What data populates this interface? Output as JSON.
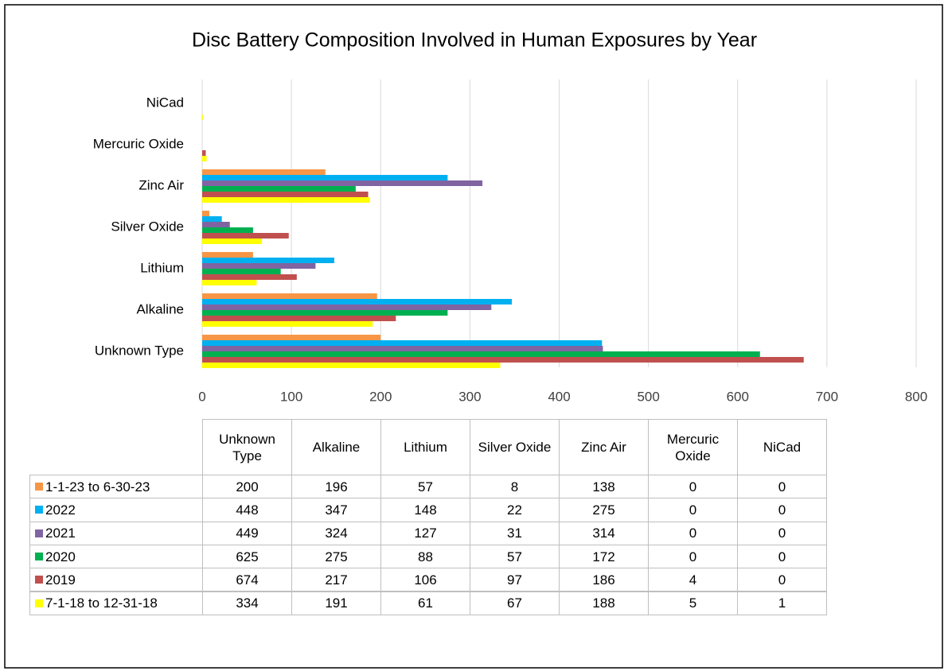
{
  "chart_data": {
    "type": "bar",
    "orientation": "horizontal",
    "title": "Disc Battery Composition Involved in Human Exposures by Year",
    "categories": [
      "Unknown Type",
      "Alkaline",
      "Lithium",
      "Silver Oxide",
      "Zinc Air",
      "Mercuric Oxide",
      "NiCad"
    ],
    "series": [
      {
        "name": "1-1-23 to 6-30-23",
        "color": "#f79646",
        "values": [
          200,
          196,
          57,
          8,
          138,
          0,
          0
        ]
      },
      {
        "name": "2022",
        "color": "#00b0f0",
        "values": [
          448,
          347,
          148,
          22,
          275,
          0,
          0
        ]
      },
      {
        "name": "2021",
        "color": "#8064a2",
        "values": [
          449,
          324,
          127,
          31,
          314,
          0,
          0
        ]
      },
      {
        "name": "2020",
        "color": "#00b050",
        "values": [
          625,
          275,
          88,
          57,
          172,
          0,
          0
        ]
      },
      {
        "name": "2019",
        "color": "#c0504d",
        "values": [
          674,
          217,
          106,
          97,
          186,
          4,
          0
        ]
      },
      {
        "name": "7-1-18 to 12-31-18",
        "color": "#ffff00",
        "values": [
          334,
          191,
          61,
          67,
          188,
          5,
          1
        ]
      }
    ],
    "xlim": [
      0,
      800
    ],
    "xticks": [
      0,
      100,
      200,
      300,
      400,
      500,
      600,
      700,
      800
    ],
    "grid": true
  }
}
